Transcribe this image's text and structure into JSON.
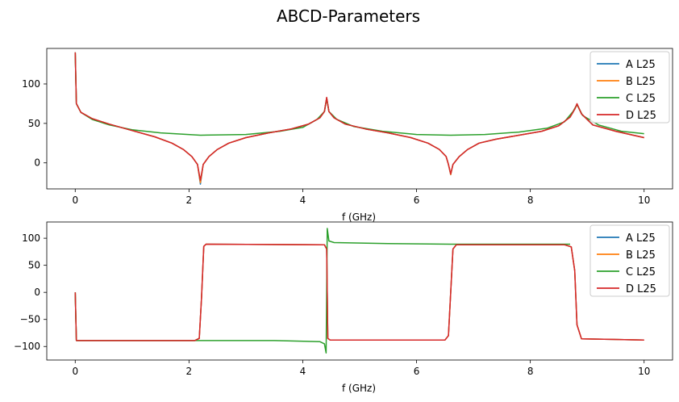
{
  "figure": {
    "title": "ABCD-Parameters"
  },
  "chart_data": [
    {
      "type": "line",
      "title": "",
      "xlabel": "f (GHz)",
      "ylabel": "",
      "xlim": [
        -0.5,
        10.5
      ],
      "ylim": [
        -33,
        145
      ],
      "xticks": [
        0,
        2,
        4,
        6,
        8,
        10
      ],
      "yticks": [
        0,
        50,
        100
      ],
      "grid": false,
      "legend_position": "top-right",
      "series": [
        {
          "name": "A L25",
          "color": "#1f77b4",
          "points": [
            [
              0,
              140
            ],
            [
              0.02,
              75
            ],
            [
              0.1,
              64
            ],
            [
              0.3,
              56
            ],
            [
              0.6,
              49
            ],
            [
              1.0,
              41
            ],
            [
              1.4,
              33
            ],
            [
              1.7,
              25
            ],
            [
              1.9,
              17
            ],
            [
              2.05,
              8
            ],
            [
              2.15,
              -2
            ],
            [
              2.2,
              -27
            ],
            [
              2.25,
              -2
            ],
            [
              2.35,
              8
            ],
            [
              2.5,
              17
            ],
            [
              2.7,
              25
            ],
            [
              3.0,
              32
            ],
            [
              3.4,
              38
            ],
            [
              3.8,
              43
            ],
            [
              4.1,
              49
            ],
            [
              4.3,
              57
            ],
            [
              4.38,
              65
            ],
            [
              4.42,
              82
            ],
            [
              4.46,
              65
            ],
            [
              4.55,
              57
            ],
            [
              4.75,
              49
            ],
            [
              5.1,
              43
            ],
            [
              5.5,
              38
            ],
            [
              5.9,
              32
            ],
            [
              6.2,
              25
            ],
            [
              6.4,
              17
            ],
            [
              6.52,
              8
            ],
            [
              6.56,
              -2
            ],
            [
              6.6,
              -15
            ],
            [
              6.64,
              -2
            ],
            [
              6.75,
              8
            ],
            [
              6.9,
              17
            ],
            [
              7.1,
              25
            ],
            [
              7.4,
              30
            ],
            [
              7.8,
              35
            ],
            [
              8.2,
              40
            ],
            [
              8.5,
              47
            ],
            [
              8.7,
              58
            ],
            [
              8.78,
              68
            ],
            [
              8.82,
              74
            ],
            [
              8.9,
              62
            ],
            [
              9.1,
              48
            ],
            [
              9.5,
              40
            ],
            [
              10,
              32
            ]
          ]
        },
        {
          "name": "B L25",
          "color": "#ff7f0e",
          "points": [
            [
              0,
              140
            ],
            [
              0.02,
              75
            ],
            [
              0.1,
              64
            ],
            [
              0.3,
              56
            ],
            [
              0.6,
              49
            ],
            [
              1.0,
              41
            ],
            [
              1.4,
              33
            ],
            [
              1.7,
              25
            ],
            [
              1.9,
              17
            ],
            [
              2.05,
              8
            ],
            [
              2.15,
              -2
            ],
            [
              2.2,
              -25
            ],
            [
              2.25,
              -2
            ],
            [
              2.35,
              8
            ],
            [
              2.5,
              17
            ],
            [
              2.7,
              25
            ],
            [
              3.0,
              32
            ],
            [
              3.4,
              38
            ],
            [
              3.8,
              43
            ],
            [
              4.1,
              49
            ],
            [
              4.3,
              57
            ],
            [
              4.38,
              65
            ],
            [
              4.42,
              82
            ],
            [
              4.46,
              65
            ],
            [
              4.55,
              57
            ],
            [
              4.75,
              49
            ],
            [
              5.1,
              43
            ],
            [
              5.5,
              38
            ],
            [
              5.9,
              32
            ],
            [
              6.2,
              25
            ],
            [
              6.4,
              17
            ],
            [
              6.52,
              8
            ],
            [
              6.56,
              -2
            ],
            [
              6.6,
              -15
            ],
            [
              6.64,
              -2
            ],
            [
              6.75,
              8
            ],
            [
              6.9,
              17
            ],
            [
              7.1,
              25
            ],
            [
              7.4,
              30
            ],
            [
              7.8,
              35
            ],
            [
              8.2,
              40
            ],
            [
              8.5,
              47
            ],
            [
              8.7,
              58
            ],
            [
              8.78,
              68
            ],
            [
              8.82,
              74
            ],
            [
              8.9,
              62
            ],
            [
              9.1,
              48
            ],
            [
              9.5,
              40
            ],
            [
              10,
              32
            ]
          ]
        },
        {
          "name": "C L25",
          "color": "#2ca02c",
          "points": [
            [
              0,
              140
            ],
            [
              0.02,
              75
            ],
            [
              0.1,
              64
            ],
            [
              0.3,
              55
            ],
            [
              0.6,
              48
            ],
            [
              1.0,
              42
            ],
            [
              1.5,
              38
            ],
            [
              2.2,
              35
            ],
            [
              3.0,
              36
            ],
            [
              3.6,
              40
            ],
            [
              4.0,
              45
            ],
            [
              4.25,
              55
            ],
            [
              4.38,
              65
            ],
            [
              4.42,
              82
            ],
            [
              4.46,
              65
            ],
            [
              4.6,
              55
            ],
            [
              4.9,
              46
            ],
            [
              5.4,
              40
            ],
            [
              6.0,
              36
            ],
            [
              6.6,
              35
            ],
            [
              7.2,
              36
            ],
            [
              7.8,
              39
            ],
            [
              8.3,
              44
            ],
            [
              8.6,
              52
            ],
            [
              8.75,
              65
            ],
            [
              8.82,
              74
            ],
            [
              8.92,
              60
            ],
            [
              9.2,
              48
            ],
            [
              9.6,
              40
            ],
            [
              10,
              37
            ]
          ]
        },
        {
          "name": "D L25",
          "color": "#d62728",
          "points": [
            [
              0,
              140
            ],
            [
              0.02,
              75
            ],
            [
              0.1,
              64
            ],
            [
              0.3,
              56
            ],
            [
              0.6,
              49
            ],
            [
              1.0,
              41
            ],
            [
              1.4,
              33
            ],
            [
              1.7,
              25
            ],
            [
              1.9,
              17
            ],
            [
              2.05,
              8
            ],
            [
              2.15,
              -2
            ],
            [
              2.2,
              -22
            ],
            [
              2.25,
              -2
            ],
            [
              2.35,
              8
            ],
            [
              2.5,
              17
            ],
            [
              2.7,
              25
            ],
            [
              3.0,
              32
            ],
            [
              3.4,
              38
            ],
            [
              3.8,
              43
            ],
            [
              4.1,
              49
            ],
            [
              4.3,
              57
            ],
            [
              4.38,
              65
            ],
            [
              4.42,
              83
            ],
            [
              4.46,
              65
            ],
            [
              4.55,
              57
            ],
            [
              4.75,
              49
            ],
            [
              5.1,
              43
            ],
            [
              5.5,
              38
            ],
            [
              5.9,
              32
            ],
            [
              6.2,
              25
            ],
            [
              6.4,
              17
            ],
            [
              6.52,
              8
            ],
            [
              6.56,
              -2
            ],
            [
              6.6,
              -14
            ],
            [
              6.64,
              -2
            ],
            [
              6.75,
              8
            ],
            [
              6.9,
              17
            ],
            [
              7.1,
              25
            ],
            [
              7.4,
              30
            ],
            [
              7.8,
              35
            ],
            [
              8.2,
              40
            ],
            [
              8.5,
              47
            ],
            [
              8.7,
              58
            ],
            [
              8.78,
              68
            ],
            [
              8.82,
              75
            ],
            [
              8.9,
              62
            ],
            [
              9.1,
              48
            ],
            [
              9.5,
              40
            ],
            [
              10,
              32
            ]
          ]
        }
      ]
    },
    {
      "type": "line",
      "title": "",
      "xlabel": "f (GHz)",
      "ylabel": "",
      "xlim": [
        -0.5,
        10.5
      ],
      "ylim": [
        -125,
        130
      ],
      "xticks": [
        0,
        2,
        4,
        6,
        8,
        10
      ],
      "yticks": [
        -100,
        -50,
        0,
        50,
        100
      ],
      "grid": false,
      "legend_position": "top-right",
      "series": [
        {
          "name": "A L25",
          "color": "#1f77b4",
          "points": [
            [
              0,
              0
            ],
            [
              0.02,
              -89
            ],
            [
              1.0,
              -89
            ],
            [
              2.1,
              -89
            ],
            [
              2.18,
              -85
            ],
            [
              2.22,
              -10
            ],
            [
              2.26,
              85
            ],
            [
              2.3,
              89
            ],
            [
              4.38,
              88
            ],
            [
              4.42,
              80
            ],
            [
              4.44,
              -85
            ],
            [
              4.48,
              -88
            ],
            [
              6.5,
              -88
            ],
            [
              6.56,
              -80
            ],
            [
              6.6,
              0
            ],
            [
              6.64,
              80
            ],
            [
              6.7,
              88
            ],
            [
              8.6,
              88
            ],
            [
              8.72,
              84
            ],
            [
              8.78,
              40
            ],
            [
              8.82,
              -60
            ],
            [
              8.9,
              -86
            ],
            [
              10,
              -88
            ]
          ]
        },
        {
          "name": "B L25",
          "color": "#ff7f0e",
          "points": [
            [
              0,
              0
            ],
            [
              0.02,
              -89
            ],
            [
              1.0,
              -89
            ],
            [
              2.1,
              -89
            ],
            [
              2.18,
              -85
            ],
            [
              2.22,
              -10
            ],
            [
              2.26,
              85
            ],
            [
              2.3,
              89
            ],
            [
              4.38,
              88
            ],
            [
              4.42,
              80
            ],
            [
              4.44,
              -85
            ],
            [
              4.48,
              -88
            ],
            [
              6.5,
              -88
            ],
            [
              6.56,
              -80
            ],
            [
              6.6,
              0
            ],
            [
              6.64,
              80
            ],
            [
              6.7,
              88
            ],
            [
              8.6,
              88
            ],
            [
              8.72,
              84
            ],
            [
              8.78,
              40
            ],
            [
              8.82,
              -60
            ],
            [
              8.9,
              -86
            ],
            [
              10,
              -88
            ]
          ]
        },
        {
          "name": "C L25",
          "color": "#2ca02c",
          "points": [
            [
              0,
              0
            ],
            [
              0.02,
              -89
            ],
            [
              1.0,
              -89
            ],
            [
              2.2,
              -89
            ],
            [
              3.5,
              -89
            ],
            [
              4.3,
              -91
            ],
            [
              4.38,
              -95
            ],
            [
              4.41,
              -112
            ],
            [
              4.42,
              0
            ],
            [
              4.43,
              118
            ],
            [
              4.46,
              95
            ],
            [
              4.55,
              92
            ],
            [
              5.5,
              90
            ],
            [
              6.6,
              89
            ],
            [
              7.5,
              89
            ],
            [
              8.7,
              89
            ]
          ]
        },
        {
          "name": "D L25",
          "color": "#d62728",
          "points": [
            [
              0,
              0
            ],
            [
              0.02,
              -89
            ],
            [
              1.0,
              -89
            ],
            [
              2.1,
              -89
            ],
            [
              2.18,
              -85
            ],
            [
              2.22,
              -10
            ],
            [
              2.26,
              85
            ],
            [
              2.3,
              89
            ],
            [
              4.38,
              88
            ],
            [
              4.42,
              80
            ],
            [
              4.44,
              -85
            ],
            [
              4.48,
              -88
            ],
            [
              6.5,
              -88
            ],
            [
              6.56,
              -80
            ],
            [
              6.6,
              0
            ],
            [
              6.64,
              80
            ],
            [
              6.7,
              88
            ],
            [
              8.6,
              88
            ],
            [
              8.72,
              84
            ],
            [
              8.78,
              40
            ],
            [
              8.82,
              -60
            ],
            [
              8.9,
              -86
            ],
            [
              10,
              -88
            ]
          ]
        }
      ]
    }
  ]
}
